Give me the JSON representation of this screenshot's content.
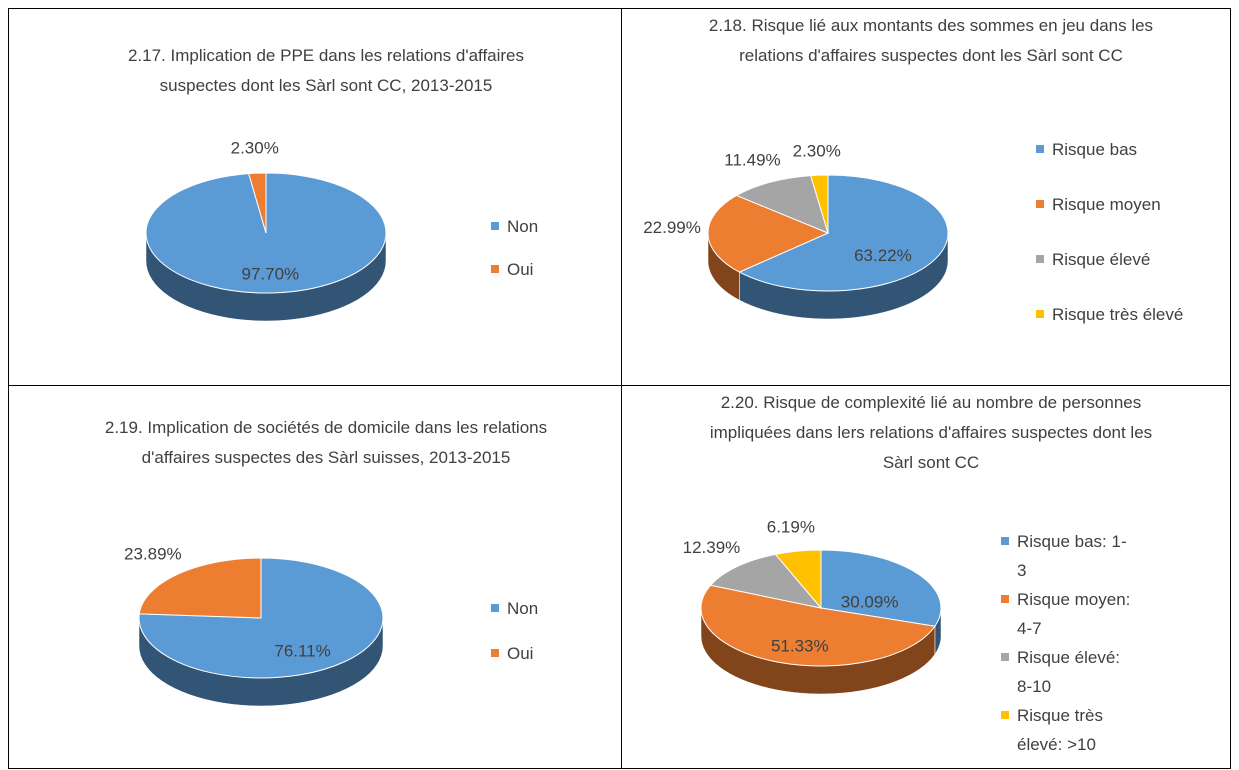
{
  "chart_data": [
    {
      "type": "pie",
      "title": "2.17. Implication de PPE dans les relations d'affaires suspectes dont les Sàrl sont CC, 2013-2015",
      "categories": [
        "Non",
        "Oui"
      ],
      "values": [
        97.7,
        2.3
      ],
      "value_labels": [
        "97.70%",
        "2.30%"
      ],
      "colors": [
        "#5b9bd5",
        "#ed7d31"
      ]
    },
    {
      "type": "pie",
      "title": "2.18. Risque lié aux montants des sommes en jeu dans les relations d'affaires suspectes dont les Sàrl sont CC",
      "categories": [
        "Risque bas",
        "Risque moyen",
        "Risque élevé",
        "Risque très élevé"
      ],
      "values": [
        63.22,
        22.99,
        11.49,
        2.3
      ],
      "value_labels": [
        "63.22%",
        "22.99%",
        "11.49%",
        "2.30%"
      ],
      "colors": [
        "#5b9bd5",
        "#ed7d31",
        "#a5a5a5",
        "#ffc000"
      ]
    },
    {
      "type": "pie",
      "title": "2.19. Implication de sociétés de domicile dans les relations d'affaires suspectes des Sàrl suisses, 2013-2015",
      "categories": [
        "Non",
        "Oui"
      ],
      "values": [
        76.11,
        23.89
      ],
      "value_labels": [
        "76.11%",
        "23.89%"
      ],
      "colors": [
        "#5b9bd5",
        "#ed7d31"
      ]
    },
    {
      "type": "pie",
      "title": "2.20. Risque de complexité lié au nombre de personnes impliquées dans lers relations d'affaires suspectes dont les Sàrl sont CC",
      "categories": [
        "Risque bas: 1-3",
        "Risque moyen: 4-7",
        "Risque élevé: 8-10",
        "Risque très élevé: >10"
      ],
      "values": [
        30.09,
        51.33,
        12.39,
        6.19
      ],
      "value_labels": [
        "30.09%",
        "51.33%",
        "12.39%",
        "6.19%"
      ],
      "colors": [
        "#5b9bd5",
        "#ed7d31",
        "#a5a5a5",
        "#ffc000"
      ]
    }
  ]
}
